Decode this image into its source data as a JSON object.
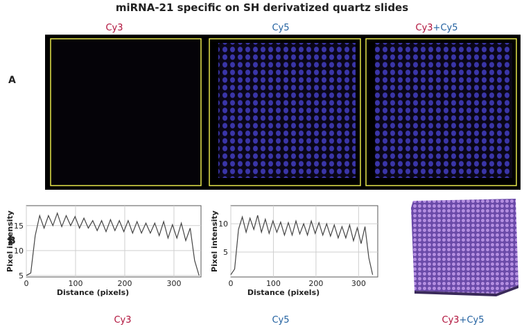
{
  "title": "miRNA-21 specific on SH derivatized quartz slides",
  "panel_labels": [
    "A",
    "B"
  ],
  "top_labels": {
    "cy3": "Cy3",
    "cy5": "Cy5",
    "merge": [
      "Cy3",
      "+Cy5"
    ]
  },
  "bottom_labels": {
    "cy3": "Cy3",
    "cy5": "Cy5",
    "merge": [
      "Cy3",
      "+Cy5"
    ]
  },
  "chart_data": [
    {
      "type": "line",
      "xlabel": "Distance (pixels)",
      "ylabel": "Pixel intensity",
      "color": "#444444",
      "grid": true,
      "x": [
        0,
        9,
        18,
        27,
        36,
        45,
        54,
        63,
        72,
        81,
        90,
        99,
        108,
        117,
        126,
        135,
        144,
        153,
        162,
        171,
        180,
        189,
        198,
        207,
        216,
        225,
        234,
        243,
        252,
        261,
        270,
        279,
        288,
        297,
        306,
        315,
        324,
        333,
        342,
        351
      ],
      "values": [
        5,
        5.5,
        13,
        17,
        14.5,
        17,
        15,
        17.5,
        14.8,
        17,
        15,
        16.8,
        14.5,
        16.5,
        14.5,
        16,
        14,
        16,
        13.8,
        16.2,
        14,
        16,
        13.8,
        16,
        13.5,
        15.8,
        13.5,
        15.5,
        13.5,
        15.5,
        13,
        15.8,
        12.5,
        15.2,
        12.5,
        15.5,
        12,
        14.5,
        8,
        5
      ],
      "xlim": [
        0,
        355
      ],
      "xticks": [
        0,
        100,
        200,
        300
      ],
      "ylim": [
        4.7,
        19
      ],
      "yticks": [
        5,
        10,
        15
      ]
    },
    {
      "type": "line",
      "xlabel": "Distance (pixels)",
      "ylabel": "Pixel intensity",
      "color": "#444444",
      "grid": true,
      "x": [
        0,
        9,
        18,
        27,
        36,
        45,
        54,
        63,
        72,
        81,
        90,
        99,
        108,
        117,
        126,
        135,
        144,
        153,
        162,
        171,
        180,
        189,
        198,
        207,
        216,
        225,
        234,
        243,
        252,
        261,
        270,
        279,
        288,
        297,
        306,
        315,
        324,
        333
      ],
      "values": [
        1,
        2,
        9,
        11.2,
        8.5,
        11,
        9,
        11.5,
        8.5,
        10.8,
        8.3,
        10.5,
        8.5,
        10.3,
        8,
        10.2,
        8,
        10.5,
        8.2,
        10,
        8,
        10.5,
        8.3,
        10.2,
        8,
        10,
        7.8,
        9.8,
        7.5,
        9.5,
        7.5,
        9.8,
        7,
        9.3,
        6.5,
        9.5,
        4,
        1
      ],
      "xlim": [
        0,
        345
      ],
      "xticks": [
        0,
        100,
        200,
        300
      ],
      "ylim": [
        0.6,
        13.2
      ],
      "yticks": [
        5,
        10
      ]
    }
  ]
}
